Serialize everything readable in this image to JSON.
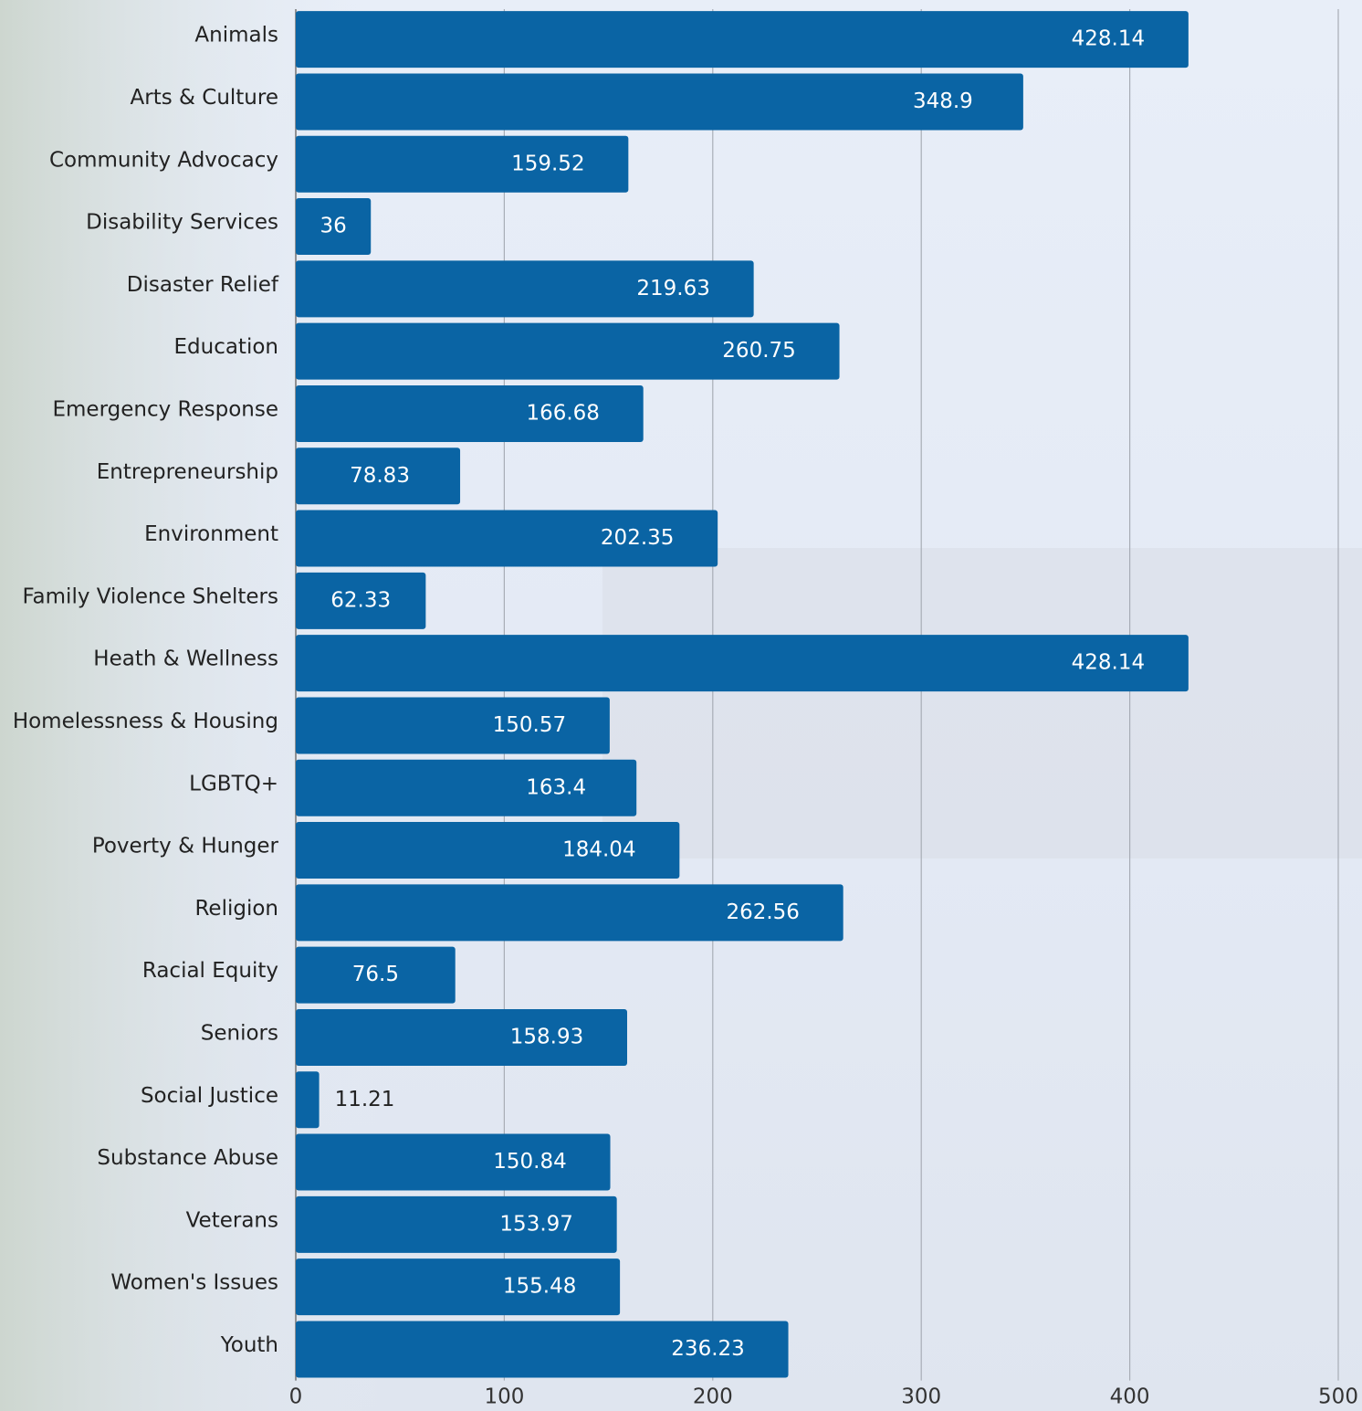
{
  "chart_data": {
    "type": "barh",
    "categories": [
      "Animals",
      "Arts & Culture",
      "Community Advocacy",
      "Disability Services",
      "Disaster Relief",
      "Education",
      "Emergency Response",
      "Entrepreneurship",
      "Environment",
      "Family Violence Shelters",
      "Heath & Wellness",
      "Homelessness & Housing",
      "LGBTQ+",
      "Poverty & Hunger",
      "Religion",
      "Racial Equity",
      "Seniors",
      "Social Justice",
      "Substance Abuse",
      "Veterans",
      "Women's Issues",
      "Youth"
    ],
    "values": [
      428.14,
      348.9,
      159.52,
      36,
      219.63,
      260.75,
      166.68,
      78.83,
      202.35,
      62.33,
      428.14,
      150.57,
      163.4,
      184.04,
      262.56,
      76.5,
      158.93,
      11.21,
      150.84,
      153.97,
      155.48,
      236.23
    ],
    "color": "#0a64a4",
    "xlim": [
      0,
      500
    ],
    "xticks": [
      0,
      100,
      200,
      300,
      400,
      500
    ],
    "grid": true
  }
}
